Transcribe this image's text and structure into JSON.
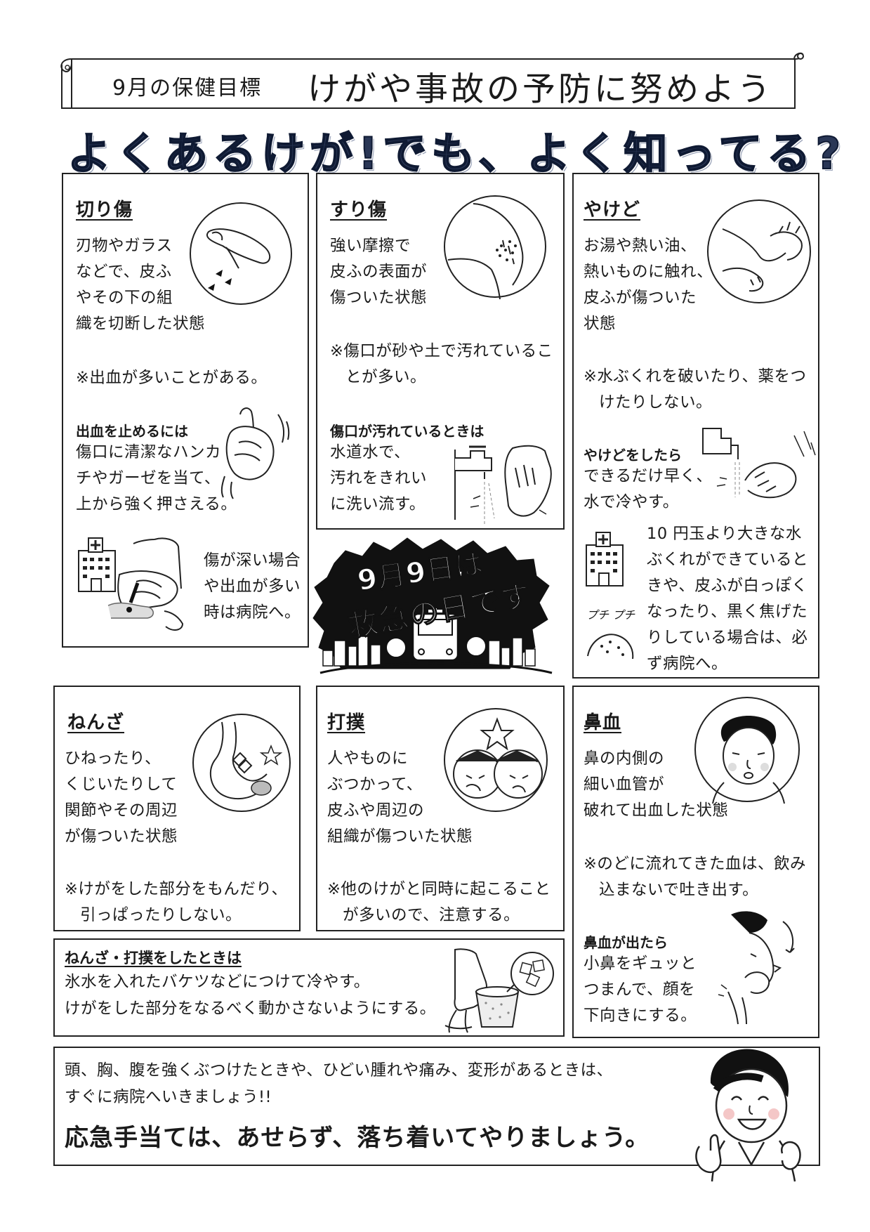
{
  "header": {
    "goal_label": "9月の保健目標",
    "goal_text": "けがや事故の予防に努めよう",
    "headline": "よくあるけが!でも、よく知ってる?"
  },
  "cards": {
    "kirikizu": {
      "title": "切り傷",
      "desc": [
        "刃物やガラス",
        "などで、皮ふ",
        "やその下の組",
        "織を切断した状態"
      ],
      "note": "※出血が多いことがある。",
      "sub_title": "出血を止めるには",
      "sub_lines": [
        "傷口に清潔なハンカ",
        "チやガーゼを当て、",
        "上から強く押さえる。"
      ],
      "hospital": [
        "傷が深い場合",
        "や出血が多い",
        "時は病院へ。"
      ]
    },
    "surikizu": {
      "title": "すり傷",
      "desc": [
        "強い摩擦で",
        "皮ふの表面が",
        "傷ついた状態"
      ],
      "note": [
        "※傷口が砂や土で汚れているこ",
        "とが多い。"
      ],
      "sub_title": "傷口が汚れているときは",
      "sub_lines": [
        "水道水で、",
        "汚れをきれい",
        "に洗い流す。"
      ]
    },
    "yakedo": {
      "title": "やけど",
      "desc": [
        "お湯や熱い油、",
        "熱いものに触れ、",
        "皮ふが傷ついた",
        "状態"
      ],
      "note": [
        "※水ぶくれを破いたり、薬をつ",
        "けたりしない。"
      ],
      "sub_title": "やけどをしたら",
      "sub_lines": [
        "できるだけ早く、",
        "水で冷やす。"
      ],
      "hospital": [
        "10 円玉より大きな水",
        "ぶくれができていると",
        "きや、皮ふが白っぽく",
        "なったり、黒く焦げた",
        "りしている場合は、必",
        "ず病院へ。"
      ],
      "sound_text": "プチ プチ"
    },
    "nenza": {
      "title": "ねんざ",
      "desc": [
        "ひねったり、",
        "くじいたりして",
        "関節やその周辺",
        "が傷ついた状態"
      ],
      "note": [
        "※けがをした部分をもんだり、",
        "引っぱったりしない。"
      ]
    },
    "dabaku": {
      "title": "打撲",
      "desc": [
        "人やものに",
        "ぶつかって、",
        "皮ふや周辺の",
        "組織が傷ついた状態"
      ],
      "note": [
        "※他のけがと同時に起こること",
        "が多いので、注意する。"
      ]
    },
    "hanaji": {
      "title": "鼻血",
      "desc": [
        "鼻の内側の",
        "細い血管が",
        "破れて出血した状態"
      ],
      "note": [
        "※のどに流れてきた血は、飲み",
        "込まないで吐き出す。"
      ],
      "sub_title": "鼻血が出たら",
      "sub_lines": [
        "小鼻をギュッと",
        "つまんで、顔を",
        "下向きにする。"
      ]
    }
  },
  "badge": {
    "line1": "9月9日は",
    "line2": "救急の日です"
  },
  "treatment": {
    "title": "ねんざ・打撲をしたときは",
    "lines": [
      "氷水を入れたバケツなどにつけて冷やす。",
      "けがをした部分をなるべく動かさないようにする。"
    ]
  },
  "footer": {
    "line1": "頭、胸、腹を強くぶつけたときや、ひどい腫れや痛み、変形があるときは、",
    "line2": "すぐに病院へいきましょう!!",
    "closing": "応急手当ては、あせらず、落ち着いてやりましょう。"
  }
}
